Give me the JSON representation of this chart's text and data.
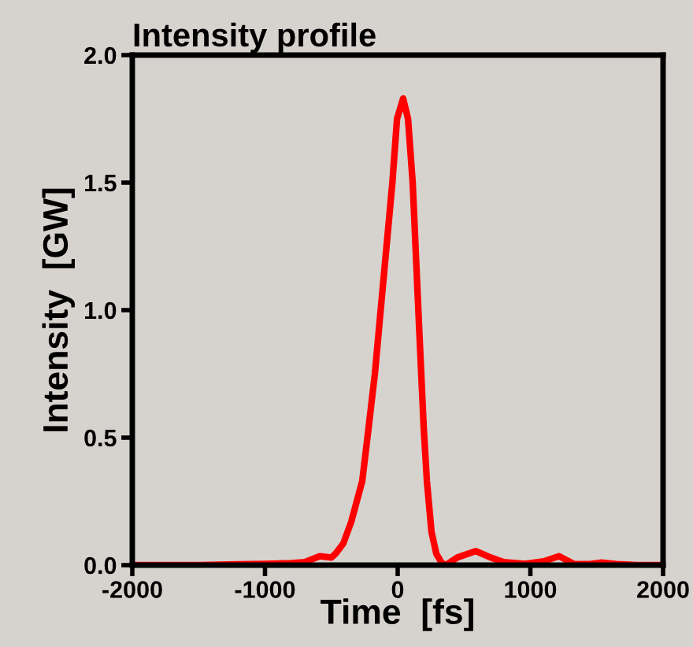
{
  "chart_data": {
    "type": "line",
    "title": "Intensity profile",
    "xlabel": "Time  [fs]",
    "ylabel": "Intensity  [GW]",
    "xlim": [
      -2000,
      2000
    ],
    "xticks": [
      -2000,
      -1000,
      0,
      1000,
      2000
    ],
    "ylim": [
      0,
      2.0
    ],
    "yticks": [
      {
        "value": 0,
        "label": "0.0"
      },
      {
        "value": 0.5,
        "label": "0.5"
      },
      {
        "value": 1.0,
        "label": "1.0"
      },
      {
        "value": 1.5,
        "label": "1.5"
      },
      {
        "value": 2.0,
        "label": "2.0"
      }
    ],
    "grid": false,
    "legend": false,
    "marker": "none",
    "line_style": "solid",
    "series": [
      {
        "color": "#ff0000",
        "x": [
          -2000,
          -1500,
          -1200,
          -1000,
          -800,
          -700,
          -587,
          -500,
          -468,
          -409,
          -350,
          -267,
          -219,
          -172,
          -137,
          -40,
          -5,
          41,
          78,
          113,
          160,
          196,
          220,
          255,
          291,
          330,
          362,
          450,
          588,
          700,
          800,
          960,
          1100,
          1216,
          1328,
          1450,
          1530,
          1650,
          1800,
          2000
        ],
        "values": [
          0,
          0,
          0.003,
          0.005,
          0.008,
          0.012,
          0.035,
          0.03,
          0.045,
          0.086,
          0.17,
          0.33,
          0.54,
          0.75,
          0.95,
          1.5,
          1.75,
          1.83,
          1.75,
          1.5,
          0.95,
          0.54,
          0.33,
          0.13,
          0.045,
          0.01,
          0,
          0.03,
          0.055,
          0.03,
          0.012,
          0.005,
          0.015,
          0.035,
          0.005,
          0.004,
          0.01,
          0.004,
          0,
          0
        ]
      }
    ]
  }
}
